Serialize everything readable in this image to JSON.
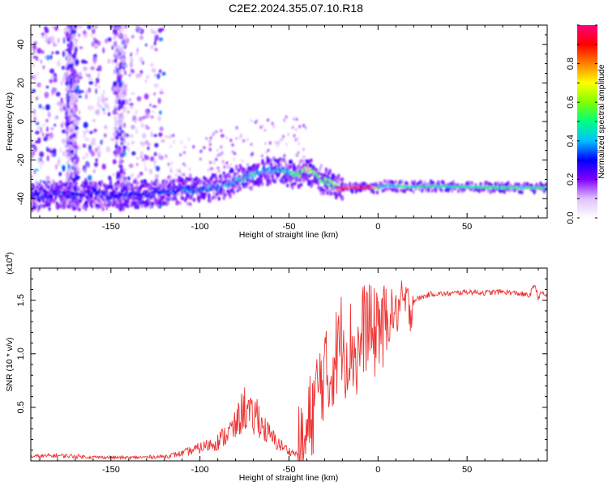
{
  "figure": {
    "title": "C2E2.2024.355.07.10.R18"
  },
  "chart_data": [
    {
      "type": "heatmap",
      "title": "C2E2.2024.355.07.10.R18",
      "xlabel": "Height of straight line (km)",
      "ylabel": "Frequency (Hz)",
      "xlim": [
        -195,
        95
      ],
      "ylim": [
        -50,
        50
      ],
      "xticks": [
        -150,
        -100,
        -50,
        0,
        50
      ],
      "yticks": [
        -40,
        -20,
        0,
        20,
        40
      ],
      "colorbar": {
        "label": "Normalized spectral amplitude",
        "range": [
          0,
          1
        ],
        "ticks": [
          0.0,
          0.2,
          0.4,
          0.6,
          0.8
        ],
        "colors": [
          "#ffffff",
          "#e0c0ff",
          "#8000ff",
          "#0000ff",
          "#00c0ff",
          "#00ff80",
          "#80ff00",
          "#ffff00",
          "#ff8000",
          "#ff0000",
          "#ff0080"
        ]
      },
      "ridge": {
        "x": [
          -195,
          -180,
          -170,
          -160,
          -150,
          -140,
          -130,
          -120,
          -110,
          -100,
          -90,
          -80,
          -70,
          -60,
          -50,
          -45,
          -40,
          -35,
          -30,
          -25,
          -20,
          -15,
          -10,
          -5,
          0,
          5,
          10,
          20,
          30,
          50,
          70,
          95
        ],
        "frequency": [
          -39,
          -38,
          -38.5,
          -37,
          -39,
          -38,
          -37.5,
          -36.5,
          -35,
          -35.5,
          -34,
          -31,
          -28,
          -25,
          -26,
          -28,
          -25,
          -28,
          -31,
          -33,
          -35,
          -34,
          -34.5,
          -34,
          -34.5,
          -33,
          -33.5,
          -34,
          -33.5,
          -34,
          -34.3,
          -34.5
        ]
      },
      "ridge_amplitude": [
        0.3,
        0.3,
        0.32,
        0.3,
        0.32,
        0.32,
        0.33,
        0.33,
        0.35,
        0.38,
        0.4,
        0.42,
        0.45,
        0.4,
        0.45,
        0.55,
        0.68,
        0.62,
        0.55,
        0.6,
        0.98,
        0.95,
        0.97,
        0.96,
        0.55,
        0.45,
        0.5,
        0.52,
        0.5,
        0.5,
        0.52,
        0.55
      ]
    },
    {
      "type": "line",
      "xlabel": "Height of straight line (km)",
      "ylabel": "SNR (10 * v/v)",
      "scale_label": "(x10",
      "scale_exponent": "4",
      "xlim": [
        -195,
        95
      ],
      "ylim": [
        0,
        18000
      ],
      "xticks": [
        -150,
        -100,
        -50,
        0,
        50
      ],
      "yticks": [
        5000,
        10000,
        15000
      ],
      "ytick_labels": [
        "0.5",
        "1.0",
        "1.5"
      ],
      "series": [
        {
          "color": "#ee3333",
          "x": [
            -195,
            -180,
            -160,
            -140,
            -120,
            -110,
            -100,
            -95,
            -90,
            -85,
            -80,
            -78,
            -75,
            -72,
            -70,
            -68,
            -65,
            -60,
            -55,
            -50,
            -45,
            -42,
            -40,
            -38,
            -35,
            -32,
            -30,
            -28,
            -25,
            -22,
            -20,
            -18,
            -15,
            -12,
            -10,
            -8,
            -5,
            -3,
            0,
            3,
            5,
            8,
            10,
            12,
            15,
            18,
            20,
            25,
            30,
            40,
            50,
            60,
            70,
            80,
            85,
            88,
            90,
            92,
            95
          ],
          "y": [
            400,
            500,
            350,
            300,
            400,
            700,
            1200,
            1500,
            1800,
            2500,
            3200,
            4000,
            5000,
            4200,
            3800,
            4500,
            3200,
            2200,
            1500,
            900,
            600,
            900,
            2000,
            4000,
            6000,
            7500,
            8500,
            7000,
            9500,
            10500,
            12000,
            10000,
            11000,
            9500,
            10500,
            12500,
            13000,
            11000,
            13500,
            12000,
            12800,
            14000,
            13500,
            14500,
            14800,
            14200,
            15000,
            15300,
            15600,
            15600,
            15800,
            15700,
            15800,
            15600,
            15400,
            16500,
            15200,
            15700,
            15400
          ]
        }
      ]
    }
  ]
}
